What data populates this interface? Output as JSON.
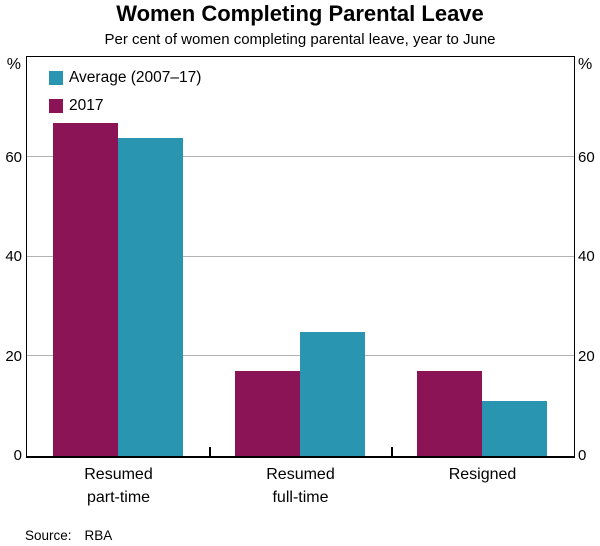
{
  "source": {
    "label": "Source:",
    "value": "RBA"
  },
  "colors": {
    "background": "#ffffff",
    "text": "#000000",
    "axis": "#000000",
    "grid": "#b3b3b3",
    "series_2017": "#8A1455",
    "series_average": "#2995B0"
  },
  "legend": {
    "items": [
      {
        "label": "Average (2007–17)",
        "color": "#2995B0"
      },
      {
        "label": "2017",
        "color": "#8A1455"
      }
    ]
  },
  "chart_data": {
    "type": "bar",
    "title": "Women Completing Parental Leave",
    "subtitle": "Per cent of women completing parental leave, year to June",
    "categories": [
      [
        "Resumed",
        "part-time"
      ],
      [
        "Resumed",
        "full-time"
      ],
      [
        "Resigned"
      ]
    ],
    "series": [
      {
        "name": "2017",
        "color": "#8A1455",
        "values": [
          67,
          17,
          17
        ]
      },
      {
        "name": "Average (2007–17)",
        "color": "#2995B0",
        "values": [
          64,
          25,
          11
        ]
      }
    ],
    "ylim": [
      0,
      80
    ],
    "yticks": [
      0,
      20,
      40,
      60
    ],
    "y_unit": "%",
    "xlabel": "",
    "ylabel": "%",
    "grid": true,
    "legend_position": "top-left"
  }
}
